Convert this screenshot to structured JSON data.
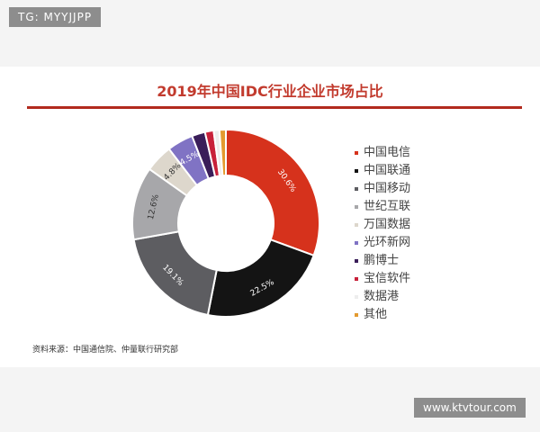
{
  "watermark_top": "TG: MYYJJPP",
  "watermark_bottom": "www.ktvtour.com",
  "source_note": "资料来源：中国通信院、仲量联行研究部",
  "chart_data": {
    "type": "pie",
    "title": "2019年中国IDC行业企业市场占比",
    "legend_position": "right",
    "series": [
      {
        "name": "中国电信",
        "value": 30.6,
        "label": "30.6%",
        "color": "#d6321c"
      },
      {
        "name": "中国联通",
        "value": 22.5,
        "label": "22.5%",
        "color": "#141414"
      },
      {
        "name": "中国移动",
        "value": 19.1,
        "label": "19.1%",
        "color": "#5d5d61"
      },
      {
        "name": "世纪互联",
        "value": 12.6,
        "label": "12.6%",
        "color": "#a7a7aa"
      },
      {
        "name": "万国数据",
        "value": 4.8,
        "label": "4.8%",
        "color": "#ddd7cc"
      },
      {
        "name": "光环新网",
        "value": 4.5,
        "label": "4.5%",
        "color": "#8073c4"
      },
      {
        "name": "鹏博士",
        "value": 2.3,
        "label": "",
        "color": "#3a1e59"
      },
      {
        "name": "宝信软件",
        "value": 1.5,
        "label": "",
        "color": "#c8213a"
      },
      {
        "name": "数据港",
        "value": 1.0,
        "label": "",
        "color": "#ededed"
      },
      {
        "name": "其他",
        "value": 1.1,
        "label": "",
        "color": "#e39a2f"
      }
    ]
  }
}
